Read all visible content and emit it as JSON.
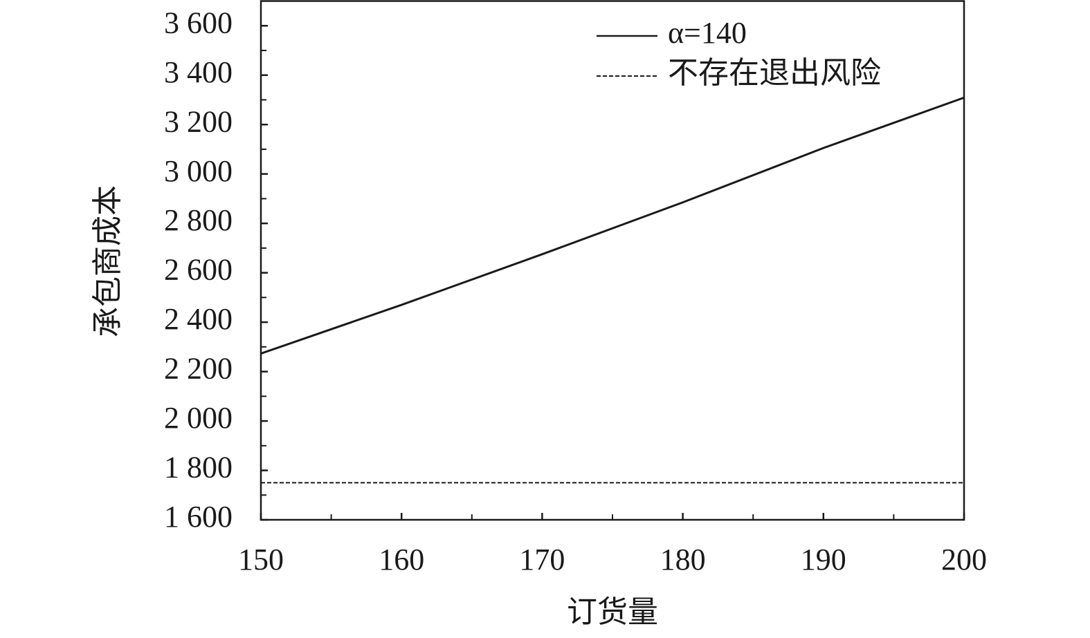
{
  "chart_data": {
    "type": "line",
    "xlabel": "订货量",
    "ylabel": "承包商成本",
    "x": [
      150,
      160,
      170,
      180,
      190,
      200
    ],
    "series": [
      {
        "name": "α=140",
        "color": "#1a1a1a",
        "dash": "solid",
        "values": [
          2273,
          2470,
          2675,
          2885,
          3105,
          3309
        ]
      },
      {
        "name": "不存在退出风险",
        "color": "#1a1a1a",
        "dash": "dashed",
        "values": [
          1750,
          1750,
          1750,
          1750,
          1750,
          1750
        ]
      }
    ],
    "xlim": [
      150,
      200
    ],
    "xticks": [
      150,
      160,
      170,
      180,
      190,
      200
    ],
    "xminorticks": [
      155,
      165,
      175,
      185,
      195
    ],
    "ylim": [
      1600,
      3700
    ],
    "yticks": [
      {
        "value": 1600,
        "label": "1 600"
      },
      {
        "value": 1800,
        "label": "1 800"
      },
      {
        "value": 2000,
        "label": "2 000"
      },
      {
        "value": 2200,
        "label": "2 200"
      },
      {
        "value": 2400,
        "label": "2 400"
      },
      {
        "value": 2600,
        "label": "2 600"
      },
      {
        "value": 2800,
        "label": "2 800"
      },
      {
        "value": 3000,
        "label": "3 000"
      },
      {
        "value": 3200,
        "label": "3 200"
      },
      {
        "value": 3400,
        "label": "3 400"
      },
      {
        "value": 3600,
        "label": "3 600"
      }
    ],
    "yminorticks": [
      1700,
      1900,
      2100,
      2300,
      2500,
      2700,
      2900,
      3100,
      3300,
      3500
    ],
    "legend": "upper right",
    "grid": false
  }
}
